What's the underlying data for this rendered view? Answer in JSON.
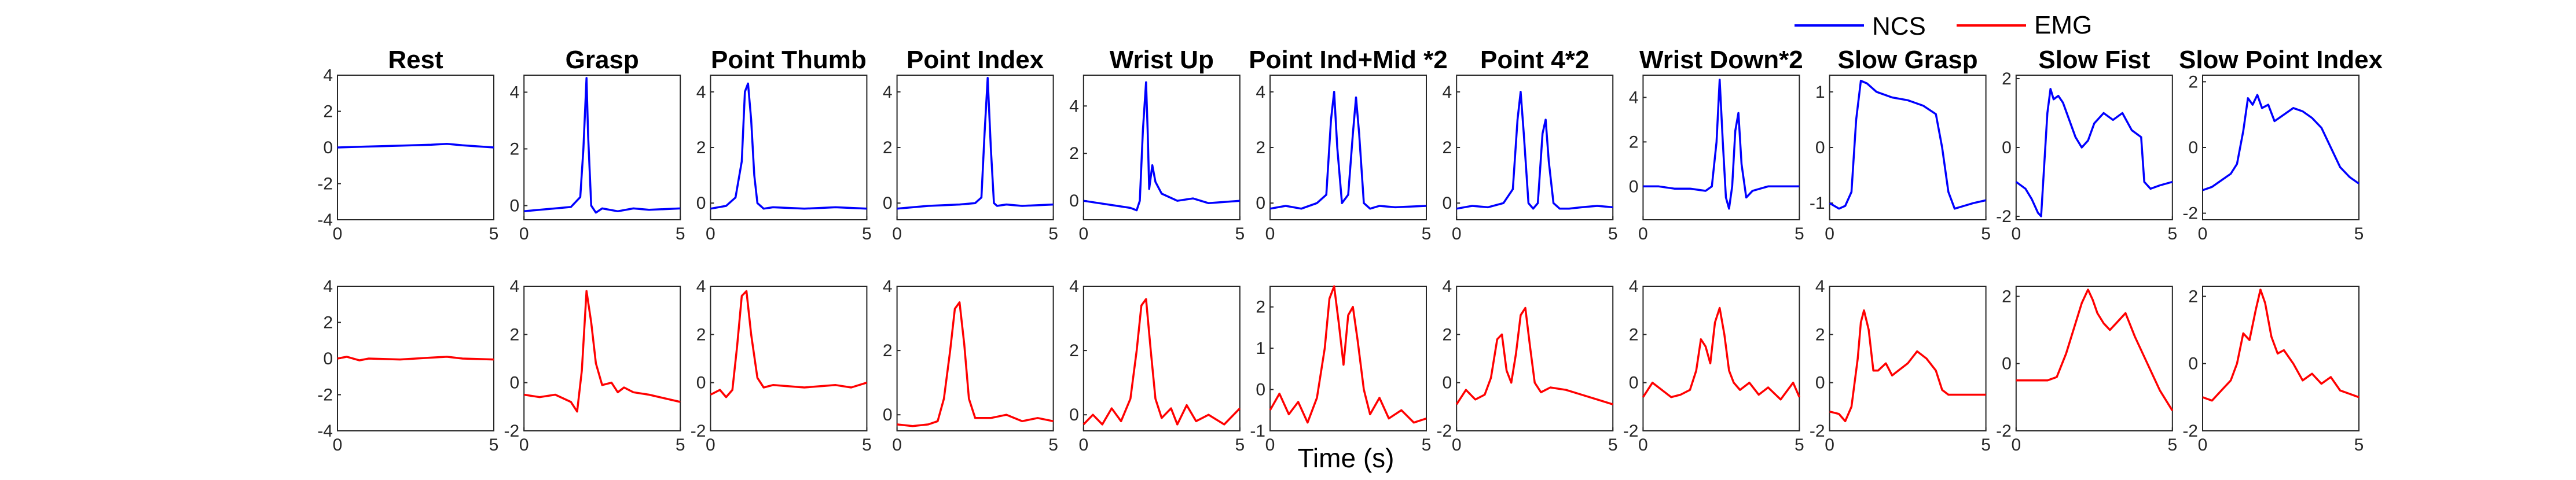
{
  "legend": [
    {
      "label": "NCS",
      "color": "#0000ff"
    },
    {
      "label": "EMG",
      "color": "#ff0000"
    }
  ],
  "chart_data": {
    "type": "line",
    "xlabel": "Time (s)",
    "xlim": [
      0,
      5
    ],
    "xticks": [
      "0",
      "5"
    ],
    "panels": [
      {
        "title": "Rest",
        "ncs": {
          "ylim": [
            -4,
            4
          ],
          "yticks": [
            -4,
            -2,
            0,
            2,
            4
          ],
          "x": [
            0,
            1,
            2,
            3,
            3.5,
            4,
            5
          ],
          "y": [
            0.0,
            0.05,
            0.1,
            0.15,
            0.2,
            0.12,
            0.0
          ]
        },
        "emg": {
          "ylim": [
            -4,
            4
          ],
          "yticks": [
            -4,
            -2,
            0,
            2,
            4
          ],
          "x": [
            0,
            0.3,
            0.7,
            1,
            2,
            3,
            3.5,
            4,
            5
          ],
          "y": [
            0.0,
            0.1,
            -0.1,
            0.0,
            -0.05,
            0.05,
            0.1,
            0.0,
            -0.05
          ]
        }
      },
      {
        "title": "Grasp",
        "ncs": {
          "ylim": [
            -0.5,
            4.6
          ],
          "yticks": [
            0,
            2,
            4
          ],
          "x": [
            0,
            0.5,
            1,
            1.5,
            1.8,
            1.9,
            2.0,
            2.05,
            2.15,
            2.3,
            2.5,
            3,
            3.5,
            4,
            5
          ],
          "y": [
            -0.2,
            -0.15,
            -0.1,
            -0.05,
            0.3,
            2.0,
            4.5,
            2.5,
            0.0,
            -0.25,
            -0.1,
            -0.2,
            -0.1,
            -0.15,
            -0.1
          ]
        },
        "emg": {
          "ylim": [
            -2,
            4
          ],
          "yticks": [
            -2,
            0,
            2,
            4
          ],
          "x": [
            0,
            0.5,
            1,
            1.5,
            1.7,
            1.85,
            2.0,
            2.15,
            2.3,
            2.5,
            2.8,
            3.0,
            3.2,
            3.5,
            4,
            5
          ],
          "y": [
            -0.5,
            -0.6,
            -0.5,
            -0.8,
            -1.2,
            0.5,
            3.8,
            2.5,
            0.8,
            -0.1,
            0.0,
            -0.4,
            -0.2,
            -0.4,
            -0.5,
            -0.8
          ]
        }
      },
      {
        "title": "Point Thumb",
        "ncs": {
          "ylim": [
            -0.6,
            4.6
          ],
          "yticks": [
            0,
            2,
            4
          ],
          "x": [
            0,
            0.5,
            0.8,
            1.0,
            1.1,
            1.2,
            1.3,
            1.4,
            1.5,
            1.7,
            2,
            3,
            4,
            5
          ],
          "y": [
            -0.2,
            -0.1,
            0.2,
            1.5,
            4.0,
            4.3,
            3.0,
            1.0,
            0.0,
            -0.2,
            -0.15,
            -0.2,
            -0.15,
            -0.2
          ]
        },
        "emg": {
          "ylim": [
            -2,
            4
          ],
          "yticks": [
            -2,
            0,
            2,
            4
          ],
          "x": [
            0,
            0.3,
            0.5,
            0.7,
            0.85,
            1.0,
            1.15,
            1.3,
            1.5,
            1.7,
            2,
            3,
            4,
            4.5,
            5
          ],
          "y": [
            -0.5,
            -0.3,
            -0.6,
            -0.3,
            1.5,
            3.6,
            3.8,
            2.0,
            0.2,
            -0.2,
            -0.1,
            -0.2,
            -0.1,
            -0.2,
            0.0
          ]
        }
      },
      {
        "title": "Point Index",
        "ncs": {
          "ylim": [
            -0.6,
            4.6
          ],
          "yticks": [
            0,
            2,
            4
          ],
          "x": [
            0,
            1,
            2,
            2.5,
            2.7,
            2.8,
            2.9,
            3.0,
            3.1,
            3.2,
            3.5,
            4,
            5
          ],
          "y": [
            -0.2,
            -0.1,
            -0.05,
            0.0,
            0.2,
            2.5,
            4.5,
            2.0,
            0.0,
            -0.1,
            -0.05,
            -0.1,
            -0.05
          ]
        },
        "emg": {
          "ylim": [
            -0.5,
            4
          ],
          "yticks": [
            0,
            2,
            4
          ],
          "x": [
            0,
            0.5,
            1,
            1.3,
            1.5,
            1.7,
            1.85,
            2.0,
            2.15,
            2.3,
            2.5,
            3,
            3.5,
            4,
            4.5,
            5
          ],
          "y": [
            -0.3,
            -0.35,
            -0.3,
            -0.2,
            0.5,
            2.0,
            3.3,
            3.5,
            2.2,
            0.5,
            -0.1,
            -0.1,
            0.0,
            -0.2,
            -0.1,
            -0.2
          ]
        }
      },
      {
        "title": "Wrist Up",
        "ncs": {
          "ylim": [
            -0.8,
            5.3
          ],
          "yticks": [
            0,
            2,
            4
          ],
          "x": [
            0,
            0.5,
            1,
            1.5,
            1.7,
            1.8,
            1.9,
            2.0,
            2.05,
            2.1,
            2.2,
            2.3,
            2.5,
            3,
            3.5,
            4,
            5
          ],
          "y": [
            0.0,
            -0.1,
            -0.2,
            -0.3,
            -0.4,
            0.0,
            3.0,
            5.0,
            3.0,
            0.5,
            1.5,
            0.8,
            0.3,
            0.0,
            0.1,
            -0.1,
            0.0
          ]
        },
        "emg": {
          "ylim": [
            -0.5,
            4
          ],
          "yticks": [
            0,
            2,
            4
          ],
          "x": [
            0,
            0.3,
            0.6,
            0.9,
            1.2,
            1.5,
            1.7,
            1.85,
            2.0,
            2.15,
            2.3,
            2.5,
            2.8,
            3.0,
            3.3,
            3.6,
            4,
            4.5,
            5
          ],
          "y": [
            -0.3,
            0.0,
            -0.3,
            0.2,
            -0.2,
            0.5,
            2.0,
            3.4,
            3.6,
            2.0,
            0.5,
            -0.1,
            0.2,
            -0.3,
            0.3,
            -0.2,
            0.0,
            -0.3,
            0.2
          ]
        }
      },
      {
        "title": "Point Ind+Mid *2",
        "ncs": {
          "ylim": [
            -0.6,
            4.6
          ],
          "yticks": [
            0,
            2,
            4
          ],
          "x": [
            0,
            0.5,
            1,
            1.5,
            1.8,
            1.95,
            2.05,
            2.15,
            2.3,
            2.5,
            2.65,
            2.75,
            2.85,
            3.0,
            3.2,
            3.5,
            4,
            5
          ],
          "y": [
            -0.2,
            -0.1,
            -0.2,
            0.0,
            0.3,
            3.0,
            4.0,
            2.0,
            0.0,
            0.3,
            2.5,
            3.8,
            2.5,
            0.0,
            -0.2,
            -0.1,
            -0.15,
            -0.1
          ]
        },
        "emg": {
          "ylim": [
            -1,
            2.5
          ],
          "yticks": [
            -1,
            0,
            1,
            2
          ],
          "x": [
            0,
            0.3,
            0.6,
            0.9,
            1.2,
            1.5,
            1.75,
            1.9,
            2.05,
            2.2,
            2.35,
            2.5,
            2.65,
            2.8,
            3.0,
            3.2,
            3.5,
            3.8,
            4.2,
            4.6,
            5
          ],
          "y": [
            -0.5,
            -0.1,
            -0.6,
            -0.3,
            -0.8,
            -0.2,
            1.0,
            2.2,
            2.5,
            1.6,
            0.6,
            1.8,
            2.0,
            1.2,
            0.0,
            -0.6,
            -0.2,
            -0.7,
            -0.5,
            -0.8,
            -0.7
          ]
        }
      },
      {
        "title": "Point 4*2",
        "ncs": {
          "ylim": [
            -0.6,
            4.6
          ],
          "yticks": [
            0,
            2,
            4
          ],
          "x": [
            0,
            0.5,
            1,
            1.5,
            1.8,
            1.95,
            2.05,
            2.15,
            2.3,
            2.45,
            2.6,
            2.75,
            2.85,
            2.95,
            3.1,
            3.3,
            3.6,
            4,
            4.5,
            5
          ],
          "y": [
            -0.2,
            -0.1,
            -0.15,
            0.0,
            0.5,
            3.0,
            4.0,
            2.5,
            0.0,
            -0.2,
            0.0,
            2.5,
            3.0,
            1.5,
            0.0,
            -0.2,
            -0.2,
            -0.15,
            -0.1,
            -0.15
          ]
        },
        "emg": {
          "ylim": [
            -2,
            4
          ],
          "yticks": [
            -2,
            0,
            2,
            4
          ],
          "x": [
            0,
            0.3,
            0.6,
            0.9,
            1.1,
            1.3,
            1.45,
            1.6,
            1.75,
            1.9,
            2.05,
            2.2,
            2.35,
            2.5,
            2.7,
            3.0,
            3.5,
            4,
            4.5,
            5
          ],
          "y": [
            -0.9,
            -0.3,
            -0.7,
            -0.5,
            0.2,
            1.8,
            2.0,
            0.5,
            0.0,
            1.2,
            2.8,
            3.1,
            1.5,
            0.0,
            -0.4,
            -0.2,
            -0.3,
            -0.5,
            -0.7,
            -0.9
          ]
        }
      },
      {
        "title": "Wrist Down*2",
        "ncs": {
          "ylim": [
            -1.5,
            5.0
          ],
          "yticks": [
            0,
            2,
            4
          ],
          "x": [
            0,
            0.5,
            1,
            1.5,
            2.0,
            2.2,
            2.35,
            2.45,
            2.55,
            2.65,
            2.75,
            2.85,
            2.95,
            3.05,
            3.15,
            3.3,
            3.5,
            4,
            5
          ],
          "y": [
            0.0,
            0.0,
            -0.1,
            -0.1,
            -0.2,
            0.0,
            2.0,
            4.8,
            2.0,
            -0.5,
            -1.0,
            0.0,
            2.5,
            3.3,
            1.0,
            -0.5,
            -0.2,
            0.0,
            0.0
          ]
        },
        "emg": {
          "ylim": [
            -2,
            4
          ],
          "yticks": [
            -2,
            0,
            2,
            4
          ],
          "x": [
            0,
            0.3,
            0.6,
            0.9,
            1.2,
            1.5,
            1.7,
            1.85,
            2.0,
            2.15,
            2.3,
            2.45,
            2.6,
            2.75,
            2.9,
            3.1,
            3.4,
            3.7,
            4,
            4.4,
            4.8,
            5
          ],
          "y": [
            -0.6,
            0.0,
            -0.3,
            -0.6,
            -0.5,
            -0.3,
            0.5,
            1.8,
            1.5,
            0.8,
            2.5,
            3.1,
            2.0,
            0.5,
            0.0,
            -0.3,
            0.0,
            -0.5,
            -0.2,
            -0.7,
            0.0,
            -0.6
          ]
        }
      },
      {
        "title": "Slow Grasp",
        "ncs": {
          "ylim": [
            -1.3,
            1.3
          ],
          "yticks": [
            -1,
            0,
            1
          ],
          "x": [
            0,
            0.3,
            0.5,
            0.7,
            0.85,
            1.0,
            1.2,
            1.5,
            2.0,
            2.5,
            3.0,
            3.4,
            3.6,
            3.8,
            4.0,
            4.3,
            4.6,
            5
          ],
          "y": [
            -1.0,
            -1.1,
            -1.05,
            -0.8,
            0.5,
            1.2,
            1.15,
            1.0,
            0.9,
            0.85,
            0.75,
            0.6,
            0.0,
            -0.8,
            -1.1,
            -1.05,
            -1.0,
            -0.95
          ]
        },
        "emg": {
          "ylim": [
            -2,
            4
          ],
          "yticks": [
            -2,
            0,
            2,
            4
          ],
          "x": [
            0,
            0.3,
            0.5,
            0.7,
            0.9,
            1.0,
            1.1,
            1.25,
            1.4,
            1.55,
            1.8,
            2.0,
            2.2,
            2.5,
            2.8,
            3.1,
            3.4,
            3.6,
            3.8,
            4.2,
            4.6,
            5
          ],
          "y": [
            -1.2,
            -1.3,
            -1.6,
            -1.0,
            1.0,
            2.5,
            3.0,
            2.2,
            0.5,
            0.5,
            0.8,
            0.3,
            0.5,
            0.8,
            1.3,
            1.0,
            0.5,
            -0.3,
            -0.5,
            -0.5,
            -0.5,
            -0.5
          ]
        }
      },
      {
        "title": "Slow Fist",
        "ncs": {
          "ylim": [
            -2.1,
            2.1
          ],
          "yticks": [
            -2,
            0,
            2
          ],
          "x": [
            0,
            0.3,
            0.5,
            0.7,
            0.8,
            0.9,
            1.0,
            1.1,
            1.2,
            1.35,
            1.5,
            1.7,
            1.9,
            2.1,
            2.3,
            2.5,
            2.8,
            3.1,
            3.4,
            3.7,
            4.0,
            4.1,
            4.3,
            4.6,
            5
          ],
          "y": [
            -1.0,
            -1.2,
            -1.5,
            -1.9,
            -2.0,
            -0.5,
            1.0,
            1.7,
            1.4,
            1.5,
            1.3,
            0.8,
            0.3,
            0.0,
            0.2,
            0.7,
            1.0,
            0.8,
            1.0,
            0.5,
            0.3,
            -1.0,
            -1.2,
            -1.1,
            -1.0
          ]
        },
        "emg": {
          "ylim": [
            -2,
            2.3
          ],
          "yticks": [
            -2,
            0,
            2
          ],
          "x": [
            0,
            0.5,
            1.0,
            1.3,
            1.6,
            1.9,
            2.1,
            2.3,
            2.45,
            2.6,
            2.8,
            3.0,
            3.2,
            3.5,
            3.8,
            4.2,
            4.6,
            5
          ],
          "y": [
            -0.5,
            -0.5,
            -0.5,
            -0.4,
            0.3,
            1.2,
            1.8,
            2.2,
            1.9,
            1.5,
            1.2,
            1.0,
            1.2,
            1.5,
            0.8,
            0.0,
            -0.8,
            -1.4
          ]
        }
      },
      {
        "title": "Slow Point Index",
        "ncs": {
          "ylim": [
            -2.2,
            2.2
          ],
          "yticks": [
            -2,
            0,
            2
          ],
          "x": [
            0,
            0.3,
            0.6,
            0.9,
            1.1,
            1.3,
            1.45,
            1.6,
            1.75,
            1.9,
            2.1,
            2.3,
            2.6,
            2.9,
            3.2,
            3.5,
            3.8,
            4.1,
            4.4,
            4.7,
            5
          ],
          "y": [
            -1.3,
            -1.2,
            -1.0,
            -0.8,
            -0.5,
            0.5,
            1.5,
            1.3,
            1.6,
            1.2,
            1.3,
            0.8,
            1.0,
            1.2,
            1.1,
            0.9,
            0.6,
            0.0,
            -0.6,
            -0.9,
            -1.1
          ]
        },
        "emg": {
          "ylim": [
            -2,
            2.3
          ],
          "yticks": [
            -2,
            0,
            2
          ],
          "x": [
            0,
            0.3,
            0.6,
            0.9,
            1.1,
            1.3,
            1.5,
            1.7,
            1.85,
            2.0,
            2.2,
            2.4,
            2.6,
            2.9,
            3.2,
            3.5,
            3.8,
            4.1,
            4.4,
            4.7,
            5
          ],
          "y": [
            -1.0,
            -1.1,
            -0.8,
            -0.5,
            0.0,
            0.9,
            0.7,
            1.6,
            2.2,
            1.8,
            0.8,
            0.3,
            0.4,
            0.0,
            -0.5,
            -0.3,
            -0.6,
            -0.4,
            -0.8,
            -0.9,
            -1.0
          ]
        }
      }
    ]
  }
}
